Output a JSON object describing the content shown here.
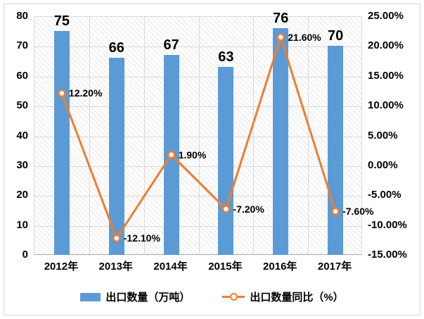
{
  "chart_data": {
    "type": "bar+line",
    "title": "",
    "categories": [
      "2012年",
      "2013年",
      "2014年",
      "2015年",
      "2016年",
      "2017年"
    ],
    "series": [
      {
        "name": "出口数量（万吨）",
        "type": "bar",
        "axis": "left",
        "color": "#5B9BD5",
        "values": [
          75,
          66,
          67,
          63,
          76,
          70
        ],
        "labels": [
          "75",
          "66",
          "67",
          "63",
          "76",
          "70"
        ]
      },
      {
        "name": "出口数量同比（%）",
        "type": "line",
        "axis": "right",
        "color": "#ED7D31",
        "marker": "circle-open",
        "values": [
          12.2,
          -12.1,
          1.9,
          -7.2,
          21.6,
          -7.6
        ],
        "labels": [
          "12.20%",
          "-12.10%",
          "1.90%",
          "-7.20%",
          "21.60%",
          "-7.60%"
        ]
      }
    ],
    "left_axis": {
      "min": 0,
      "max": 80,
      "step": 10,
      "ticks": [
        "80",
        "70",
        "60",
        "50",
        "40",
        "30",
        "20",
        "10",
        "0"
      ]
    },
    "right_axis": {
      "min": -15,
      "max": 25,
      "step": 5,
      "ticks": [
        "25.00%",
        "20.00%",
        "15.00%",
        "10.00%",
        "5.00%",
        "0.00%",
        "-5.00%",
        "-10.00%",
        "-15.00%"
      ]
    },
    "grid": true,
    "legend_position": "bottom",
    "plot_background": "light-diagonal-hatch"
  },
  "colors": {
    "bar": "#5B9BD5",
    "line": "#ED7D31",
    "gridline": "#D9D9D9",
    "text": "#000000"
  }
}
